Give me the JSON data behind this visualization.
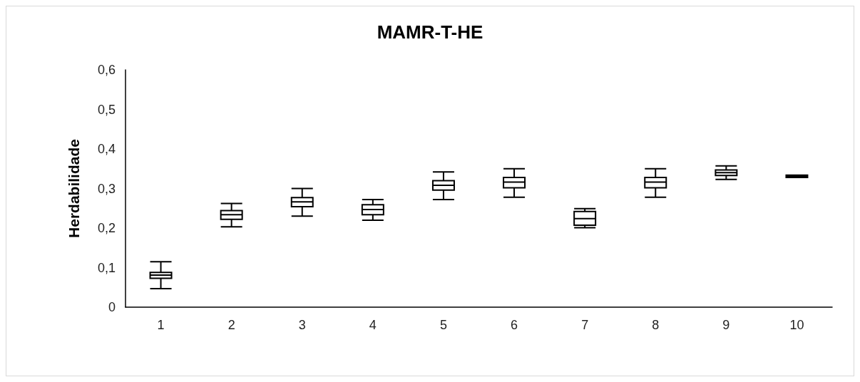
{
  "chart_data": {
    "type": "box",
    "title": "MAMR-T-HE",
    "ylabel": "Herdabilidade",
    "categories": [
      "1",
      "2",
      "3",
      "4",
      "5",
      "6",
      "7",
      "8",
      "9",
      "10"
    ],
    "boxes": [
      {
        "low": 0.047,
        "q1": 0.073,
        "median": 0.081,
        "q3": 0.088,
        "high": 0.115
      },
      {
        "low": 0.203,
        "q1": 0.222,
        "median": 0.234,
        "q3": 0.244,
        "high": 0.262
      },
      {
        "low": 0.23,
        "q1": 0.254,
        "median": 0.266,
        "q3": 0.277,
        "high": 0.3
      },
      {
        "low": 0.22,
        "q1": 0.234,
        "median": 0.247,
        "q3": 0.259,
        "high": 0.272
      },
      {
        "low": 0.272,
        "q1": 0.296,
        "median": 0.308,
        "q3": 0.32,
        "high": 0.342
      },
      {
        "low": 0.278,
        "q1": 0.302,
        "median": 0.316,
        "q3": 0.328,
        "high": 0.35
      },
      {
        "low": 0.201,
        "q1": 0.207,
        "median": 0.224,
        "q3": 0.242,
        "high": 0.249
      },
      {
        "low": 0.278,
        "q1": 0.302,
        "median": 0.316,
        "q3": 0.328,
        "high": 0.35
      },
      {
        "low": 0.323,
        "q1": 0.333,
        "median": 0.34,
        "q3": 0.347,
        "high": 0.357
      },
      {
        "low": 0.328,
        "q1": 0.328,
        "median": 0.331,
        "q3": 0.334,
        "high": 0.334
      }
    ],
    "color": "#000000",
    "ylim": [
      0,
      0.6
    ],
    "yticks": [
      0,
      {
        "value": 0.1,
        "label": "0,1"
      },
      {
        "value": 0.2,
        "label": "0,2"
      },
      {
        "value": 0.3,
        "label": "0,3"
      },
      {
        "value": 0.4,
        "label": "0,4"
      },
      {
        "value": 0.5,
        "label": "0,5"
      },
      {
        "value": 0.6,
        "label": "0,6"
      }
    ],
    "grid": false
  }
}
